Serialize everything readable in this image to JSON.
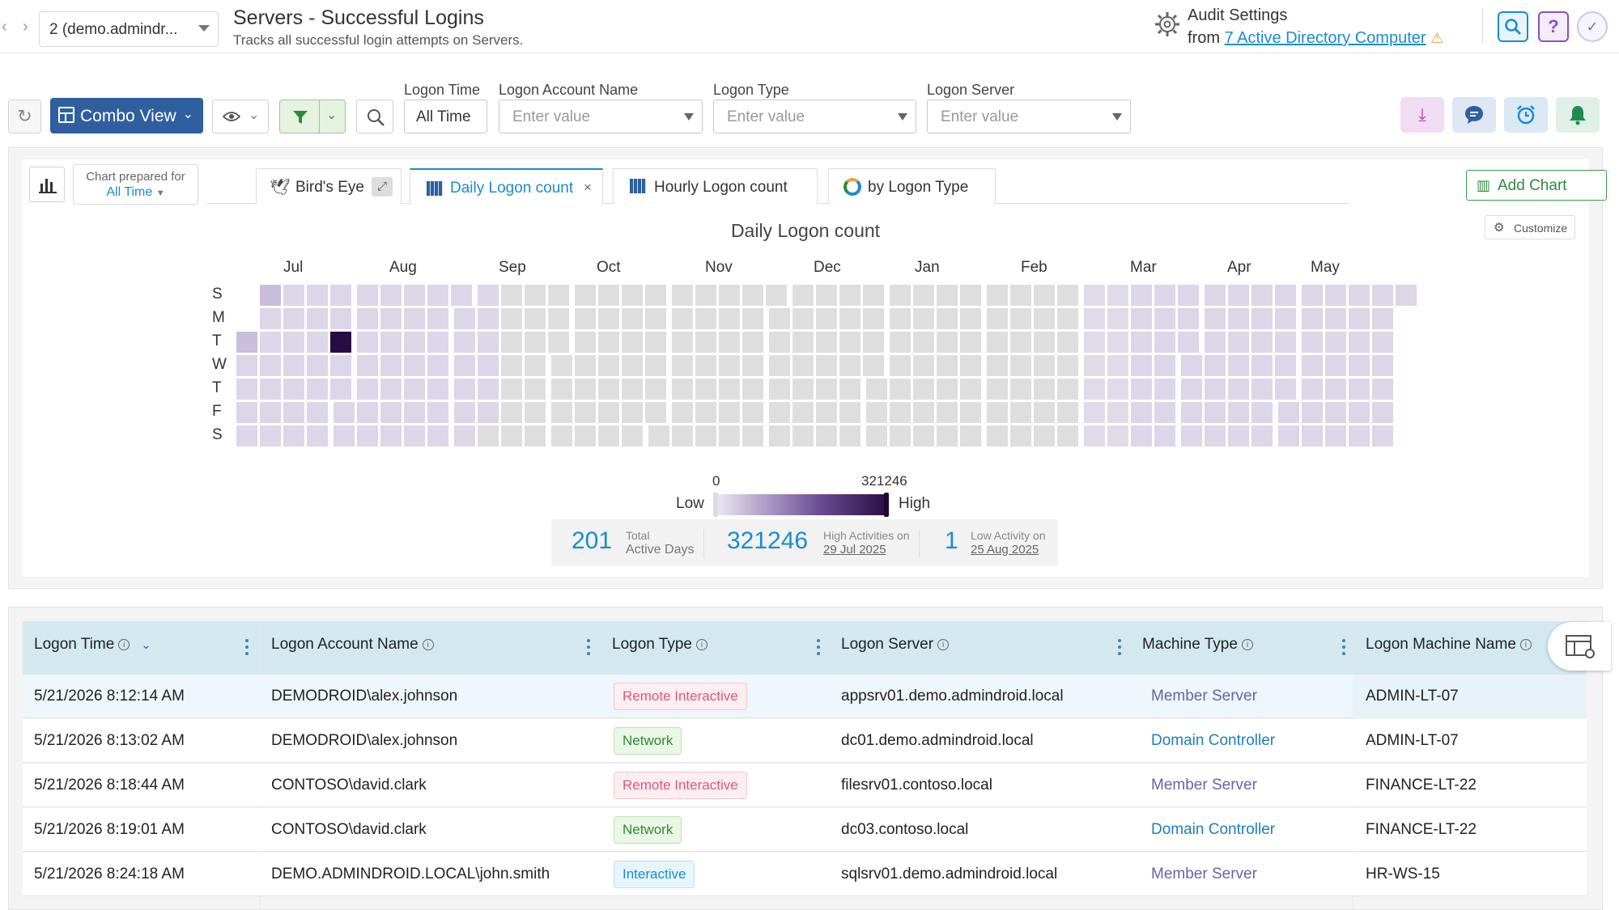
{
  "header": {
    "nav_back": "‹",
    "nav_forward": "›",
    "tenant_selector": "2 (demo.admindr...",
    "title": "Servers - Successful Logins",
    "subtitle": "Tracks all successful login attempts on Servers.",
    "audit_settings_label": "Audit Settings",
    "audit_from_prefix": "from",
    "audit_link": "7 Active Directory Computer",
    "icons": [
      "search-icon",
      "help-icon",
      "check-circle-icon"
    ]
  },
  "toolbar": {
    "combo_view_label": "Combo View",
    "filters": [
      {
        "label": "Logon Time",
        "value": "All Time"
      },
      {
        "label": "Logon Account Name",
        "placeholder": "Enter value"
      },
      {
        "label": "Logon Type",
        "placeholder": "Enter value"
      },
      {
        "label": "Logon Server",
        "placeholder": "Enter value"
      }
    ]
  },
  "chart_panel": {
    "prepared_for_label": "Chart prepared for",
    "prepared_for_value": "All Time",
    "tabs": [
      "Bird's Eye",
      "Daily Logon count",
      "Hourly Logon count",
      "by Logon Type"
    ],
    "active_tab": "Daily Logon count",
    "add_chart_label": "Add Chart",
    "customize_label": "Customize"
  },
  "chart_data": {
    "type": "heatmap",
    "title": "Daily Logon count",
    "months": [
      "Jul",
      "Aug",
      "Sep",
      "Oct",
      "Nov",
      "Dec",
      "Jan",
      "Feb",
      "Mar",
      "Apr",
      "May"
    ],
    "weekdays": [
      "S",
      "M",
      "T",
      "W",
      "T",
      "F",
      "S"
    ],
    "legend": {
      "min": "0",
      "max": "321246",
      "low_label": "Low",
      "high_label": "High"
    },
    "peak": {
      "date": "29 Jul 2025",
      "value": 321246
    },
    "low": {
      "date": "25 Aug 2025",
      "value": 1
    },
    "active_days": 201
  },
  "stats": {
    "total_active_days": "201",
    "total_small": "Total",
    "total_label": "Active Days",
    "high_value": "321246",
    "high_label": "High Activities on",
    "high_date": "29 Jul 2025",
    "low_value": "1",
    "low_label": "Low Activity on",
    "low_date": "25 Aug 2025"
  },
  "table": {
    "columns": [
      "Logon Time",
      "Logon Account Name",
      "Logon Type",
      "Logon Server",
      "Machine Type",
      "Logon Machine Name"
    ],
    "rows": [
      {
        "time": "5/21/2026 8:12:14 AM",
        "account": "DEMODROID\\alex.johnson",
        "type": "Remote Interactive",
        "server": "appsrv01.demo.admindroid.local",
        "machine_type": "Member Server",
        "machine": "ADMIN-LT-07"
      },
      {
        "time": "5/21/2026 8:13:02 AM",
        "account": "DEMODROID\\alex.johnson",
        "type": "Network",
        "server": "dc01.demo.admindroid.local",
        "machine_type": "Domain Controller",
        "machine": "ADMIN-LT-07"
      },
      {
        "time": "5/21/2026 8:18:44 AM",
        "account": "CONTOSO\\david.clark",
        "type": "Remote Interactive",
        "server": "filesrv01.contoso.local",
        "machine_type": "Member Server",
        "machine": "FINANCE-LT-22"
      },
      {
        "time": "5/21/2026 8:19:01 AM",
        "account": "CONTOSO\\david.clark",
        "type": "Network",
        "server": "dc03.contoso.local",
        "machine_type": "Domain Controller",
        "machine": "FINANCE-LT-22"
      },
      {
        "time": "5/21/2026 8:24:18 AM",
        "account": "DEMO.ADMINDROID.LOCAL\\john.smith",
        "type": "Interactive",
        "server": "sqlsrv01.demo.admindroid.local",
        "machine_type": "Member Server",
        "machine": "HR-WS-15"
      }
    ]
  },
  "colors": {
    "accent": "#1a8ccf",
    "combo_button": "#2f5f9e",
    "heat_low": "#ece8f3",
    "heat_high": "#2a0c45",
    "heat_empty": "#dedede"
  }
}
